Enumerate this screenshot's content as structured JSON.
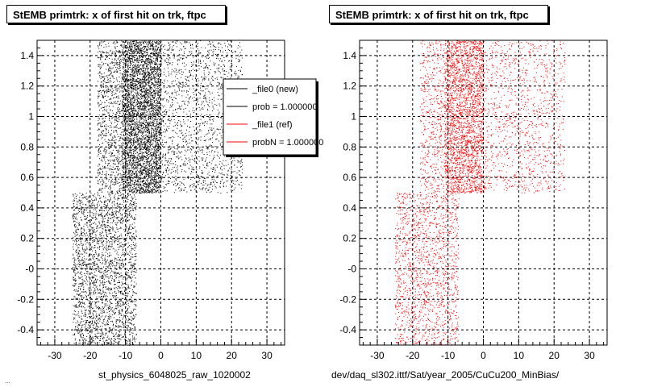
{
  "panels": [
    {
      "title": "StEMB primtrk: x of first hit on trk, ftpc",
      "xlabel": "st_physics_6048025_raw_1020002",
      "legend": [
        {
          "label": "_file0 (new)",
          "color": "#000000"
        },
        {
          "label": "prob = 1.000000",
          "color": "#000000"
        },
        {
          "label": "_file1 (ref)",
          "color": "#ff0000"
        },
        {
          "label": "probN = 1.000000",
          "color": "#ff0000"
        }
      ]
    },
    {
      "title": "StEMB primtrk: x of first hit on trk, ftpc",
      "xlabel": "dev/daq_sl302.ittf/Sat/year_2005/CuCu200_MinBias/"
    }
  ],
  "footer": "...",
  "chart_data": [
    {
      "type": "scatter",
      "title": "StEMB primtrk: x of first hit on trk, ftpc",
      "xlabel": "st_physics_6048025_raw_1020002",
      "ylabel": "",
      "xlim": [
        -35,
        35
      ],
      "ylim": [
        -0.5,
        1.5
      ],
      "xticks": [
        -30,
        -20,
        -10,
        0,
        10,
        20,
        30
      ],
      "yticks": [
        "-0.4",
        "-0.2",
        "-0",
        "0.2",
        "0.4",
        "0.6",
        "0.8",
        "1",
        "1.2",
        "1.4"
      ],
      "grid": true,
      "legend_position": "top-right",
      "series": [
        {
          "name": "_file0 (new)",
          "color": "#000000",
          "regions": [
            {
              "x": [
                -11,
                0
              ],
              "y": [
                0.5,
                1.5
              ],
              "n": 4200
            },
            {
              "x": [
                -18,
                -11
              ],
              "y": [
                0.5,
                1.5
              ],
              "n": 900
            },
            {
              "x": [
                0,
                23
              ],
              "y": [
                0.5,
                1.5
              ],
              "n": 1600
            },
            {
              "x": [
                -25,
                -7
              ],
              "y": [
                -0.5,
                0.5
              ],
              "n": 2600
            }
          ]
        }
      ]
    },
    {
      "type": "scatter",
      "title": "StEMB primtrk: x of first hit on trk, ftpc",
      "xlabel": "dev/daq_sl302.ittf/Sat/year_2005/CuCu200_MinBias/",
      "ylabel": "",
      "xlim": [
        -35,
        35
      ],
      "ylim": [
        -0.5,
        1.5
      ],
      "xticks": [
        -30,
        -20,
        -10,
        0,
        10,
        20,
        30
      ],
      "yticks": [
        "-0.4",
        "-0.2",
        "-0",
        "0.2",
        "0.4",
        "0.6",
        "0.8",
        "1",
        "1.2",
        "1.4"
      ],
      "grid": true,
      "series": [
        {
          "name": "_file1 (ref)",
          "color": "#ff0000",
          "regions": [
            {
              "x": [
                -11,
                0
              ],
              "y": [
                0.5,
                1.5
              ],
              "n": 2600
            },
            {
              "x": [
                -18,
                -11
              ],
              "y": [
                0.5,
                1.5
              ],
              "n": 500
            },
            {
              "x": [
                0,
                23
              ],
              "y": [
                0.5,
                1.5
              ],
              "n": 1100
            },
            {
              "x": [
                -25,
                -7
              ],
              "y": [
                -0.5,
                0.5
              ],
              "n": 1500
            }
          ]
        }
      ]
    }
  ]
}
